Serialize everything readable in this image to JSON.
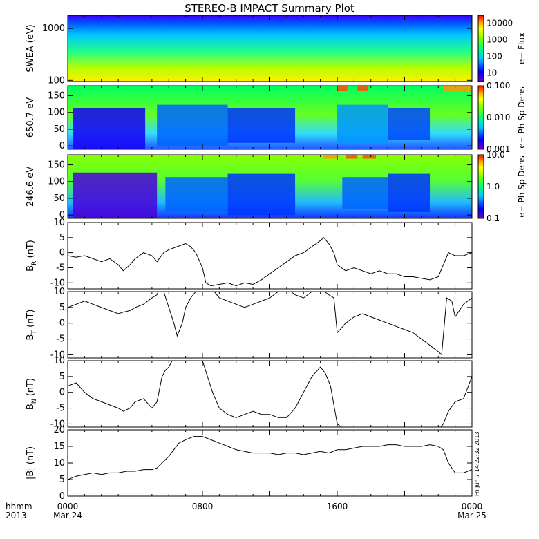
{
  "title": "STEREO-B IMPACT Summary Plot",
  "time_axis": {
    "row1_label": "hhmm",
    "row2_label": "2013",
    "ticks": [
      {
        "x": 0,
        "top": "0000",
        "bottom": "Mar 24"
      },
      {
        "x": 8,
        "top": "0800",
        "bottom": ""
      },
      {
        "x": 16,
        "top": "1600",
        "bottom": ""
      },
      {
        "x": 24,
        "top": "0000",
        "bottom": "Mar 25"
      }
    ],
    "range": [
      0,
      24
    ]
  },
  "timestamp": "Fri Jun  7 14:22:32 2013",
  "chart_data": [
    {
      "type": "heatmap",
      "ylabel": "SWEA (eV)",
      "colorbar_label": "e− Flux",
      "log_y": true,
      "ylim": [
        95,
        1800
      ],
      "yticks": [
        {
          "v": 1000,
          "label": "1000"
        },
        {
          "v": 100,
          "label": "100"
        }
      ],
      "log_color": true,
      "crange": [
        3,
        30000
      ],
      "cticks": [
        {
          "v": 10000,
          "label": "10000"
        },
        {
          "v": 1000,
          "label": "1000"
        },
        {
          "v": 100,
          "label": "100"
        },
        {
          "v": 10,
          "label": "10"
        }
      ]
    },
    {
      "type": "heatmap",
      "ylabel": "650.7 eV",
      "colorbar_label": "e− Ph Sp Dens",
      "log_y": false,
      "ylim": [
        -10,
        180
      ],
      "yticks": [
        {
          "v": 0,
          "label": "0"
        },
        {
          "v": 50,
          "label": "50"
        },
        {
          "v": 100,
          "label": "100"
        },
        {
          "v": 150,
          "label": "150"
        }
      ],
      "log_color": true,
      "crange": [
        0.001,
        0.1
      ],
      "cticks": [
        {
          "v": 0.1,
          "label": "0.100"
        },
        {
          "v": 0.01,
          "label": "0.010"
        },
        {
          "v": 0.001,
          "label": "0.001"
        }
      ]
    },
    {
      "type": "heatmap",
      "ylabel": "246.6 eV",
      "colorbar_label": "e− Ph Sp Dens",
      "log_y": false,
      "ylim": [
        -10,
        180
      ],
      "yticks": [
        {
          "v": 0,
          "label": "0"
        },
        {
          "v": 50,
          "label": "50"
        },
        {
          "v": 100,
          "label": "100"
        },
        {
          "v": 150,
          "label": "150"
        }
      ],
      "log_color": true,
      "crange": [
        0.1,
        10
      ],
      "cticks": [
        {
          "v": 10,
          "label": "10.0"
        },
        {
          "v": 1,
          "label": "1.0"
        },
        {
          "v": 0.1,
          "label": "0.1"
        }
      ]
    },
    {
      "type": "line",
      "ylabel": "B",
      "ylabel_sub": "R",
      "ylabel_unit": " (nT)",
      "ylim": [
        -12,
        10
      ],
      "yticks": [
        {
          "v": 10,
          "label": "10"
        },
        {
          "v": 5,
          "label": "5"
        },
        {
          "v": 0,
          "label": "0"
        },
        {
          "v": -5,
          "label": "-5"
        },
        {
          "v": -10,
          "label": "-10"
        }
      ],
      "x": [
        0,
        0.5,
        1,
        1.5,
        2,
        2.5,
        3,
        3.3,
        3.7,
        4,
        4.5,
        5,
        5.3,
        5.7,
        6,
        6.5,
        7,
        7.3,
        7.6,
        8,
        8.2,
        8.5,
        9,
        9.5,
        10,
        10.5,
        11,
        11.5,
        12,
        12.5,
        13,
        13.5,
        14,
        14.5,
        15,
        15.2,
        15.5,
        15.8,
        16,
        16.5,
        17,
        17.5,
        18,
        18.5,
        19,
        19.5,
        20,
        20.5,
        21,
        21.5,
        22,
        22.3,
        22.6,
        23,
        23.5,
        24
      ],
      "y": [
        -1,
        -1.5,
        -1,
        -2,
        -3,
        -2,
        -4,
        -6,
        -4,
        -2,
        0,
        -1,
        -3,
        0,
        1,
        2,
        3,
        2,
        0,
        -5,
        -10,
        -11,
        -10.5,
        -10,
        -11,
        -10,
        -10.5,
        -9,
        -7,
        -5,
        -3,
        -1,
        0,
        2,
        4,
        5,
        3,
        0,
        -4,
        -6,
        -5,
        -6,
        -7,
        -6,
        -7,
        -7,
        -8,
        -8,
        -8.5,
        -9,
        -8,
        -4,
        0,
        -1,
        -1,
        0
      ]
    },
    {
      "type": "line",
      "ylabel": "B",
      "ylabel_sub": "T",
      "ylabel_unit": " (nT)",
      "ylim": [
        -11,
        10
      ],
      "yticks": [
        {
          "v": 10,
          "label": "10"
        },
        {
          "v": 5,
          "label": "5"
        },
        {
          "v": 0,
          "label": "0"
        },
        {
          "v": -5,
          "label": "-5"
        },
        {
          "v": -10,
          "label": "-10"
        }
      ],
      "x": [
        0,
        0.5,
        1,
        1.5,
        2,
        2.5,
        3,
        3.3,
        3.7,
        4,
        4.5,
        5,
        5.3,
        5.5,
        5.7,
        6,
        6.3,
        6.5,
        6.8,
        7,
        7.3,
        7.6,
        8,
        8.3,
        8.7,
        9,
        9.5,
        10,
        10.5,
        11,
        11.5,
        12,
        12.5,
        13,
        13.5,
        14,
        14.5,
        15,
        15.5,
        15.8,
        16,
        16.5,
        17,
        17.5,
        18,
        18.5,
        19,
        19.5,
        20,
        20.5,
        21,
        21.5,
        22,
        22.2,
        22.5,
        22.8,
        23,
        23.5,
        24
      ],
      "y": [
        5,
        6,
        7,
        6,
        5,
        4,
        3,
        3.5,
        4,
        5,
        6,
        8,
        9,
        12,
        10,
        5,
        0,
        -4,
        0,
        5,
        8,
        10,
        12,
        11,
        10,
        8,
        7,
        6,
        5,
        6,
        7,
        8,
        10,
        11,
        9,
        8,
        10,
        11,
        9,
        8,
        -3,
        0,
        2,
        3,
        2,
        1,
        0,
        -1,
        -2,
        -3,
        -5,
        -7,
        -9,
        -10,
        8,
        7,
        2,
        6,
        8
      ]
    },
    {
      "type": "line",
      "ylabel": "B",
      "ylabel_sub": "N",
      "ylabel_unit": " (nT)",
      "ylim": [
        -11,
        10
      ],
      "yticks": [
        {
          "v": 10,
          "label": "10"
        },
        {
          "v": 5,
          "label": "5"
        },
        {
          "v": 0,
          "label": "0"
        },
        {
          "v": -5,
          "label": "-5"
        },
        {
          "v": -10,
          "label": "-10"
        }
      ],
      "x": [
        0,
        0.5,
        1,
        1.5,
        2,
        2.5,
        3,
        3.3,
        3.7,
        4,
        4.5,
        5,
        5.3,
        5.6,
        5.8,
        6,
        6.2,
        6.4,
        6.6,
        7,
        7.3,
        7.6,
        8,
        8.3,
        8.6,
        9,
        9.5,
        10,
        10.5,
        11,
        11.5,
        12,
        12.5,
        13,
        13.5,
        14,
        14.5,
        15,
        15.3,
        15.6,
        16,
        16.5,
        17,
        17.5,
        18,
        18.5,
        19,
        19.5,
        20,
        20.5,
        21,
        21.5,
        22,
        22.3,
        22.6,
        23,
        23.5,
        24
      ],
      "y": [
        2,
        3,
        0,
        -2,
        -3,
        -4,
        -5,
        -6,
        -5,
        -3,
        -2,
        -5,
        -3,
        5,
        7,
        8,
        10,
        12,
        12,
        12,
        12,
        12,
        10,
        5,
        0,
        -5,
        -7,
        -8,
        -7,
        -6,
        -7,
        -7,
        -8,
        -8,
        -5,
        0,
        5,
        8,
        6,
        2,
        -10,
        -12,
        -12,
        -12,
        -12,
        -12,
        -12,
        -12,
        -12,
        -12,
        -12,
        -12,
        -12,
        -10,
        -6,
        -3,
        -2,
        5
      ]
    },
    {
      "type": "line",
      "ylabel": "|B| (nT)",
      "ylabel_sub": "",
      "ylabel_unit": "",
      "ylim": [
        0,
        20
      ],
      "yticks": [
        {
          "v": 0,
          "label": "0"
        },
        {
          "v": 5,
          "label": "5"
        },
        {
          "v": 10,
          "label": "10"
        },
        {
          "v": 15,
          "label": "15"
        },
        {
          "v": 20,
          "label": "20"
        }
      ],
      "x": [
        0,
        0.5,
        1,
        1.5,
        2,
        2.5,
        3,
        3.5,
        4,
        4.5,
        5,
        5.3,
        5.6,
        6,
        6.3,
        6.6,
        7,
        7.5,
        8,
        8.5,
        9,
        9.5,
        10,
        10.5,
        11,
        11.5,
        12,
        12.5,
        13,
        13.5,
        14,
        14.5,
        15,
        15.5,
        16,
        16.5,
        17,
        17.5,
        18,
        18.5,
        19,
        19.5,
        20,
        20.5,
        21,
        21.5,
        22,
        22.3,
        22.6,
        23,
        23.5,
        24
      ],
      "y": [
        5,
        6,
        6.5,
        7,
        6.5,
        7,
        7,
        7.5,
        7.5,
        8,
        8,
        8.5,
        10,
        12,
        14,
        16,
        17,
        18,
        18,
        17,
        16,
        15,
        14,
        13.5,
        13,
        13,
        13,
        12.5,
        13,
        13,
        12.5,
        13,
        13.5,
        13,
        14,
        14,
        14.5,
        15,
        15,
        15,
        15.5,
        15.5,
        15,
        15,
        15,
        15.5,
        15,
        14,
        10,
        7,
        7,
        8
      ]
    }
  ]
}
